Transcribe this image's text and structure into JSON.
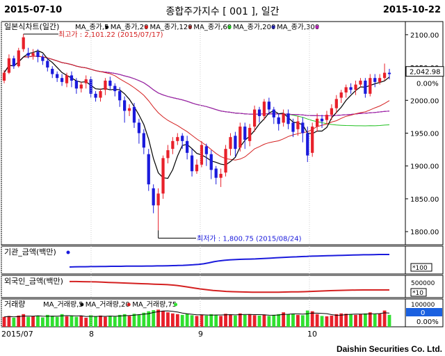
{
  "header": {
    "start_date": "2015-07-10",
    "title": "종합주가지수 [ 001 ], 일간",
    "end_date": "2015-10-22"
  },
  "footer": "Daishin Securities Co. Ltd.",
  "colors": {
    "up": "#e8202a",
    "down": "#1a1adc",
    "ma5": "#000000",
    "ma20": "#d42020",
    "ma60": "#20c020",
    "ma120": "#8a2a2a",
    "ma200": "#2020a0",
    "ma300": "#b020b0",
    "vol_up": "#e8202a",
    "vol_down": "#30e030"
  },
  "chart_data": [
    {
      "type": "candlestick",
      "title": "일본식차트(일간)",
      "legend": [
        "MA_종가,5",
        "MA_종가,20",
        "MA_종가,120",
        "MA_종가,60",
        "MA_종가,200",
        "MA_종가,300"
      ],
      "ylim": [
        1780,
        2120
      ],
      "y_ticks": [
        "2100.00",
        "2050.00",
        "2000.00",
        "1950.00",
        "1900.00",
        "1850.00",
        "1800.00"
      ],
      "current_value": "2,042.98",
      "change": "0.00%",
      "annotations": {
        "high": "최고가 : 2,101.22 (2015/07/17)",
        "low": "최저가 : 1,800.75 (2015/08/24)"
      },
      "x_ticks": [
        "2015/07",
        "8",
        "9",
        "10"
      ],
      "candles": [
        [
          2030,
          2042,
          2026,
          2046
        ],
        [
          2042,
          2064,
          2040,
          2070
        ],
        [
          2064,
          2052,
          2048,
          2068
        ],
        [
          2052,
          2076,
          2050,
          2080
        ],
        [
          2078,
          2096,
          2074,
          2101
        ],
        [
          2072,
          2068,
          2064,
          2080
        ],
        [
          2068,
          2072,
          2062,
          2078
        ],
        [
          2074,
          2066,
          2058,
          2078
        ],
        [
          2066,
          2060,
          2054,
          2070
        ],
        [
          2060,
          2050,
          2044,
          2064
        ],
        [
          2048,
          2040,
          2034,
          2052
        ],
        [
          2040,
          2034,
          2028,
          2044
        ],
        [
          2034,
          2028,
          2022,
          2040
        ],
        [
          2026,
          2038,
          2020,
          2042
        ],
        [
          2038,
          2030,
          2020,
          2044
        ],
        [
          2030,
          2018,
          2010,
          2034
        ],
        [
          2018,
          2024,
          2012,
          2028
        ],
        [
          2026,
          2032,
          2018,
          2038
        ],
        [
          2032,
          2010,
          2004,
          2036
        ],
        [
          2010,
          2004,
          1998,
          2014
        ],
        [
          2004,
          2014,
          1998,
          2018
        ],
        [
          2016,
          2030,
          2008,
          2034
        ],
        [
          2030,
          2022,
          2016,
          2036
        ],
        [
          2022,
          2014,
          2006,
          2026
        ],
        [
          2014,
          2000,
          1990,
          2020
        ],
        [
          2000,
          1984,
          1966,
          2006
        ],
        [
          1984,
          1988,
          1976,
          1994
        ],
        [
          1990,
          1966,
          1958,
          1996
        ],
        [
          1966,
          1950,
          1934,
          1972
        ],
        [
          1950,
          1928,
          1918,
          1956
        ],
        [
          1918,
          1872,
          1862,
          1926
        ],
        [
          1866,
          1840,
          1828,
          1872
        ],
        [
          1840,
          1858,
          1802,
          1866
        ],
        [
          1858,
          1912,
          1850,
          1916
        ],
        [
          1912,
          1924,
          1904,
          1932
        ],
        [
          1926,
          1938,
          1918,
          1944
        ],
        [
          1938,
          1944,
          1932,
          1950
        ],
        [
          1946,
          1938,
          1926,
          1950
        ],
        [
          1938,
          1920,
          1910,
          1946
        ],
        [
          1916,
          1892,
          1884,
          1926
        ],
        [
          1892,
          1902,
          1888,
          1910
        ],
        [
          1902,
          1932,
          1898,
          1938
        ],
        [
          1930,
          1918,
          1900,
          1934
        ],
        [
          1918,
          1894,
          1880,
          1924
        ],
        [
          1896,
          1882,
          1872,
          1900
        ],
        [
          1882,
          1888,
          1868,
          1896
        ],
        [
          1890,
          1926,
          1884,
          1932
        ],
        [
          1926,
          1944,
          1916,
          1950
        ],
        [
          1946,
          1926,
          1914,
          1952
        ],
        [
          1928,
          1960,
          1922,
          1966
        ],
        [
          1960,
          1940,
          1926,
          1966
        ],
        [
          1938,
          1958,
          1930,
          1964
        ],
        [
          1960,
          1986,
          1952,
          1992
        ],
        [
          1986,
          1976,
          1966,
          1990
        ],
        [
          1976,
          1998,
          1970,
          2002
        ],
        [
          1998,
          1986,
          1978,
          2004
        ],
        [
          1986,
          1974,
          1964,
          1990
        ],
        [
          1974,
          1964,
          1954,
          1980
        ],
        [
          1966,
          1980,
          1960,
          1986
        ],
        [
          1980,
          1964,
          1956,
          1986
        ],
        [
          1966,
          1952,
          1944,
          1972
        ],
        [
          1956,
          1968,
          1946,
          1976
        ],
        [
          1966,
          1950,
          1936,
          1974
        ],
        [
          1950,
          1916,
          1906,
          1960
        ],
        [
          1920,
          1960,
          1914,
          1966
        ],
        [
          1960,
          1972,
          1952,
          1980
        ],
        [
          1972,
          1968,
          1958,
          1978
        ],
        [
          1970,
          1978,
          1964,
          1984
        ],
        [
          1978,
          1988,
          1970,
          1994
        ],
        [
          1988,
          2002,
          1980,
          2008
        ],
        [
          2004,
          2012,
          1996,
          2016
        ],
        [
          2012,
          2020,
          2004,
          2024
        ],
        [
          2020,
          2016,
          2010,
          2026
        ],
        [
          2016,
          2024,
          2008,
          2030
        ],
        [
          2024,
          2030,
          2020,
          2034
        ],
        [
          2030,
          2010,
          2004,
          2034
        ],
        [
          2010,
          2034,
          2006,
          2040
        ],
        [
          2034,
          2028,
          2020,
          2040
        ],
        [
          2028,
          2034,
          2024,
          2040
        ],
        [
          2034,
          2042,
          2030,
          2056
        ],
        [
          2042,
          2040,
          2032,
          2048
        ]
      ]
    },
    {
      "type": "line",
      "title": "기관_금액(백만)",
      "y_ticks": [
        "*100"
      ],
      "values": [
        0.1,
        0.11,
        0.12,
        0.12,
        0.13,
        0.13,
        0.14,
        0.14,
        0.15,
        0.15,
        0.15,
        0.16,
        0.16,
        0.16,
        0.16,
        0.17,
        0.17,
        0.18,
        0.18,
        0.19,
        0.2,
        0.21,
        0.22,
        0.24,
        0.26,
        0.29,
        0.33,
        0.4,
        0.48,
        0.54,
        0.58,
        0.61,
        0.63,
        0.65,
        0.66,
        0.67,
        0.68,
        0.7,
        0.72,
        0.74,
        0.76,
        0.78,
        0.8,
        0.82,
        0.83,
        0.85,
        0.86,
        0.88,
        0.89,
        0.9,
        0.91,
        0.92,
        0.93,
        0.94,
        0.95,
        0.96,
        0.97,
        0.98,
        0.98,
        0.99,
        1.0,
        1.0,
        1.0
      ]
    },
    {
      "type": "line",
      "title": "외국인_금액(백만)",
      "y_ticks": [
        "500000",
        "*10"
      ],
      "values": [
        0.95,
        0.95,
        0.94,
        0.93,
        0.92,
        0.9,
        0.88,
        0.86,
        0.84,
        0.82,
        0.8,
        0.78,
        0.76,
        0.74,
        0.72,
        0.7,
        0.66,
        0.6,
        0.52,
        0.44,
        0.36,
        0.3,
        0.24,
        0.2,
        0.16,
        0.14,
        0.12,
        0.11,
        0.1,
        0.1,
        0.1,
        0.1,
        0.1,
        0.11,
        0.12,
        0.13,
        0.14,
        0.16,
        0.18,
        0.2,
        0.22,
        0.24,
        0.25,
        0.26,
        0.27,
        0.28,
        0.28,
        0.28,
        0.28,
        0.28
      ]
    },
    {
      "type": "bar",
      "title": "거래량",
      "legend": [
        "MA_거래량,5",
        "MA_거래량,20",
        "MA_거래량,75"
      ],
      "y_ticks": [
        "100000",
        "0.00%"
      ],
      "current_value": "0",
      "volumes": [
        0.55,
        0.6,
        0.5,
        0.62,
        0.7,
        0.55,
        0.58,
        0.6,
        0.52,
        0.66,
        0.6,
        0.55,
        0.7,
        0.58,
        0.62,
        0.55,
        0.6,
        0.5,
        0.64,
        0.58,
        0.62,
        0.55,
        0.6,
        0.56,
        0.66,
        0.7,
        0.6,
        0.72,
        0.68,
        0.78,
        0.86,
        0.92,
        0.95,
        0.88,
        0.8,
        0.74,
        0.7,
        0.66,
        0.72,
        0.64,
        0.6,
        0.68,
        0.62,
        0.7,
        0.66,
        0.6,
        0.72,
        0.68,
        0.62,
        0.74,
        0.66,
        0.7,
        0.64,
        0.62,
        0.68,
        0.6,
        0.66,
        0.7,
        0.8,
        0.7,
        0.72,
        0.66,
        0.64,
        0.9,
        0.86,
        0.7,
        0.6,
        0.58,
        0.62,
        0.7,
        0.74,
        0.72,
        0.68,
        0.66,
        0.7,
        0.74,
        0.8,
        0.7,
        0.72,
        0.9,
        0.66
      ]
    }
  ]
}
